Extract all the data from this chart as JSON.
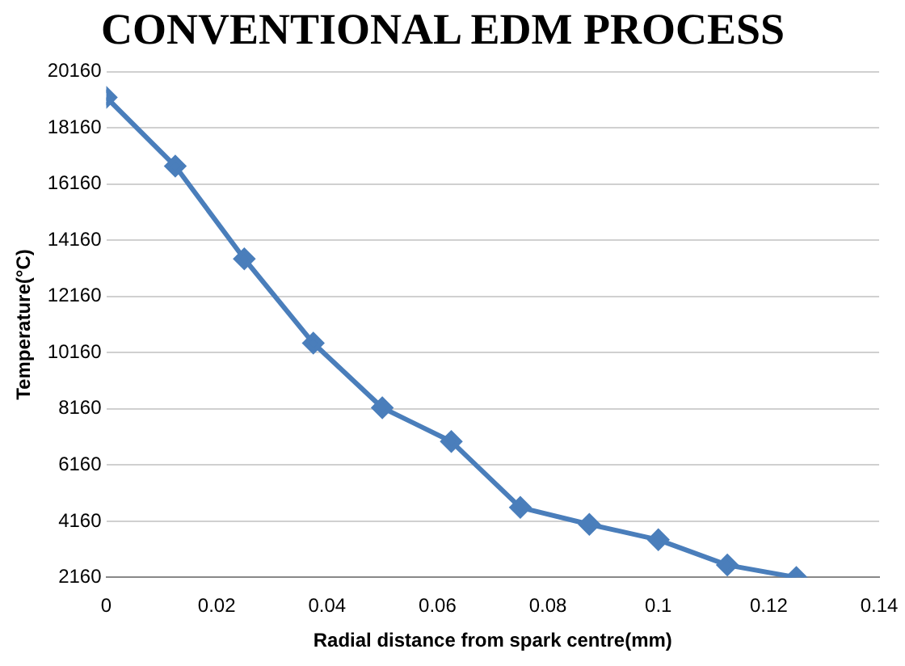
{
  "chart_data": {
    "type": "line",
    "title": "CONVENTIONAL EDM PROCESS",
    "xlabel": "Radial distance from spark centre(mm)",
    "ylabel": "Temperature(°C)",
    "x": [
      0,
      0.0125,
      0.025,
      0.0375,
      0.05,
      0.0625,
      0.075,
      0.0875,
      0.1,
      0.1125,
      0.125
    ],
    "series": [
      {
        "color": "#4a7ebb",
        "values": [
          19250,
          16800,
          13500,
          10500,
          8200,
          7000,
          4650,
          4050,
          3500,
          2600,
          2160
        ]
      }
    ],
    "xlim": [
      0,
      0.14
    ],
    "xticks": [
      0,
      0.02,
      0.04,
      0.06,
      0.08,
      0.1,
      0.12,
      0.14
    ],
    "ylim": [
      2160,
      20160
    ],
    "yticks": [
      2160,
      4160,
      6160,
      8160,
      10160,
      12160,
      14160,
      16160,
      18160,
      20160
    ],
    "grid": "y",
    "legend": false,
    "marker": "diamond",
    "line_style": "solid"
  }
}
